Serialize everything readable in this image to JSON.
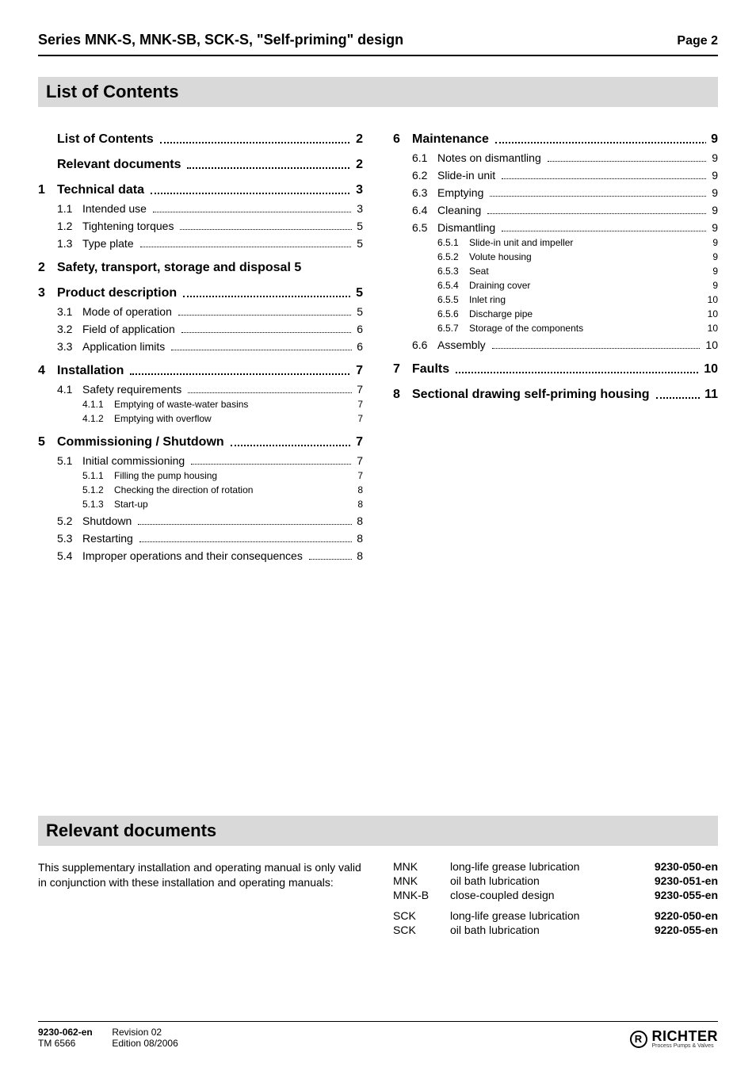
{
  "header": {
    "series": "Series MNK-S, MNK-SB, SCK-S, ",
    "subtitle": "\"Self-priming\" design",
    "page_label": "Page 2"
  },
  "bands": {
    "list_of_contents": "List of Contents",
    "relevant_documents": "Relevant documents"
  },
  "toc_left": [
    {
      "lvl": 1,
      "num": "",
      "txt": "List of Contents",
      "pg": "2",
      "noline": false
    },
    {
      "lvl": 1,
      "num": "",
      "txt": "Relevant documents",
      "pg": "2",
      "noline": false
    },
    {
      "lvl": 1,
      "num": "1",
      "txt": "Technical data",
      "pg": "3",
      "noline": false
    },
    {
      "lvl": 2,
      "num": "1.1",
      "txt": "Intended use",
      "pg": "3"
    },
    {
      "lvl": 2,
      "num": "1.2",
      "txt": "Tightening torques",
      "pg": "5"
    },
    {
      "lvl": 2,
      "num": "1.3",
      "txt": "Type plate",
      "pg": "5"
    },
    {
      "lvl": 1,
      "num": "2",
      "txt": "Safety, transport, storage and disposal 5",
      "pg": "",
      "noline": true
    },
    {
      "lvl": 1,
      "num": "3",
      "txt": "Product description",
      "pg": "5",
      "noline": false
    },
    {
      "lvl": 2,
      "num": "3.1",
      "txt": "Mode of operation",
      "pg": "5"
    },
    {
      "lvl": 2,
      "num": "3.2",
      "txt": "Field of application",
      "pg": "6"
    },
    {
      "lvl": 2,
      "num": "3.3",
      "txt": "Application limits",
      "pg": "6"
    },
    {
      "lvl": 1,
      "num": "4",
      "txt": "Installation",
      "pg": "7",
      "noline": false
    },
    {
      "lvl": 2,
      "num": "4.1",
      "txt": "Safety requirements",
      "pg": "7"
    },
    {
      "lvl": 3,
      "num": "4.1.1",
      "txt": "Emptying of waste-water basins",
      "pg": "7"
    },
    {
      "lvl": 3,
      "num": "4.1.2",
      "txt": "Emptying with overflow",
      "pg": "7"
    },
    {
      "lvl": 1,
      "num": "5",
      "txt": "Commissioning / Shutdown",
      "pg": "7",
      "noline": false
    },
    {
      "lvl": 2,
      "num": "5.1",
      "txt": "Initial commissioning",
      "pg": "7"
    },
    {
      "lvl": 3,
      "num": "5.1.1",
      "txt": "Filling the pump housing",
      "pg": "7"
    },
    {
      "lvl": 3,
      "num": "5.1.2",
      "txt": "Checking the direction of rotation",
      "pg": "8"
    },
    {
      "lvl": 3,
      "num": "5.1.3",
      "txt": "Start-up",
      "pg": "8"
    },
    {
      "lvl": 2,
      "num": "5.2",
      "txt": "Shutdown",
      "pg": "8"
    },
    {
      "lvl": 2,
      "num": "5.3",
      "txt": "Restarting",
      "pg": "8"
    },
    {
      "lvl": 2,
      "num": "5.4",
      "txt": "Improper operations and their  consequences",
      "pg": "8"
    }
  ],
  "toc_right": [
    {
      "lvl": 1,
      "num": "6",
      "txt": "Maintenance",
      "pg": "9",
      "noline": false
    },
    {
      "lvl": 2,
      "num": "6.1",
      "txt": "Notes on dismantling",
      "pg": "9"
    },
    {
      "lvl": 2,
      "num": "6.2",
      "txt": "Slide-in unit",
      "pg": "9"
    },
    {
      "lvl": 2,
      "num": "6.3",
      "txt": "Emptying",
      "pg": "9"
    },
    {
      "lvl": 2,
      "num": "6.4",
      "txt": "Cleaning",
      "pg": "9"
    },
    {
      "lvl": 2,
      "num": "6.5",
      "txt": "Dismantling",
      "pg": "9"
    },
    {
      "lvl": 3,
      "num": "6.5.1",
      "txt": "Slide-in unit and impeller",
      "pg": "9"
    },
    {
      "lvl": 3,
      "num": "6.5.2",
      "txt": "Volute housing",
      "pg": "9"
    },
    {
      "lvl": 3,
      "num": "6.5.3",
      "txt": "Seat",
      "pg": "9"
    },
    {
      "lvl": 3,
      "num": "6.5.4",
      "txt": "Draining cover",
      "pg": "9"
    },
    {
      "lvl": 3,
      "num": "6.5.5",
      "txt": "Inlet ring",
      "pg": "10"
    },
    {
      "lvl": 3,
      "num": "6.5.6",
      "txt": "Discharge pipe",
      "pg": "10"
    },
    {
      "lvl": 3,
      "num": "6.5.7",
      "txt": "Storage of the components",
      "pg": "10"
    },
    {
      "lvl": 2,
      "num": "6.6",
      "txt": "Assembly",
      "pg": "10"
    },
    {
      "lvl": 1,
      "num": "7",
      "txt": "Faults",
      "pg": "10",
      "noline": false
    },
    {
      "lvl": 1,
      "num": "8",
      "txt": "Sectional drawing  self-priming housing",
      "pg": "11",
      "noline": false
    }
  ],
  "reldocs": {
    "para": "This supplementary installation and operating manual is only valid in conjunction with these installation and operating manuals:",
    "rows": [
      {
        "m": "MNK",
        "d": "long-life grease lubrication",
        "c": "9230-050-en"
      },
      {
        "m": "MNK",
        "d": "oil bath lubrication",
        "c": "9230-051-en"
      },
      {
        "m": "MNK-B",
        "d": "close-coupled design",
        "c": "9230-055-en"
      },
      {
        "m": "SPACER"
      },
      {
        "m": "SCK",
        "d": "long-life grease lubrication",
        "c": "9220-050-en"
      },
      {
        "m": "SCK",
        "d": "oil bath lubrication",
        "c": "9220-055-en"
      }
    ]
  },
  "footer": {
    "doc": "9230-062-en",
    "rev": "Revision 02",
    "tm": "TM 6566",
    "ed": "Edition 08/2006",
    "logo_letter": "R",
    "brand": "RICHTER",
    "tag": "Process Pumps & Valves"
  }
}
